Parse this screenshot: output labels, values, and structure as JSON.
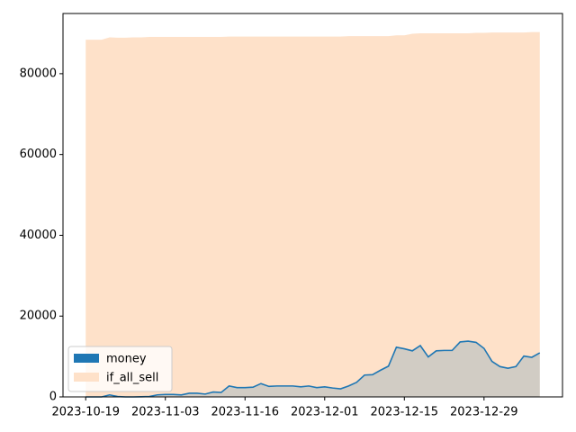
{
  "chart_data": {
    "type": "area",
    "categories": [
      "2023-10-19",
      null,
      null,
      null,
      null,
      null,
      null,
      null,
      null,
      null,
      "2023-11-03",
      null,
      null,
      null,
      null,
      null,
      null,
      null,
      null,
      null,
      "2023-11-16",
      null,
      null,
      null,
      null,
      null,
      null,
      null,
      null,
      null,
      "2023-12-01",
      null,
      null,
      null,
      null,
      null,
      null,
      null,
      null,
      null,
      "2023-12-15",
      null,
      null,
      null,
      null,
      null,
      null,
      null,
      null,
      null,
      "2023-12-29",
      null,
      null,
      null,
      null,
      null,
      null,
      null
    ],
    "series": [
      {
        "name": "if_all_sell",
        "color": "#fee1c9",
        "values": [
          88400,
          88400,
          88400,
          89000,
          88900,
          88900,
          89000,
          89000,
          89100,
          89100,
          89100,
          89100,
          89100,
          89100,
          89100,
          89100,
          89100,
          89100,
          89200,
          89200,
          89200,
          89200,
          89200,
          89200,
          89200,
          89200,
          89200,
          89200,
          89200,
          89200,
          89200,
          89200,
          89200,
          89300,
          89300,
          89300,
          89300,
          89300,
          89300,
          89500,
          89500,
          89900,
          90000,
          90000,
          90000,
          90000,
          90000,
          90000,
          90000,
          90100,
          90100,
          90200,
          90200,
          90200,
          90200,
          90200,
          90300,
          90300
        ]
      },
      {
        "name": "money",
        "color": "#1f77b4",
        "values": [
          0,
          0,
          0,
          500,
          100,
          0,
          0,
          50,
          100,
          500,
          600,
          600,
          500,
          900,
          900,
          700,
          1200,
          1100,
          2700,
          2300,
          2300,
          2400,
          3300,
          2600,
          2700,
          2700,
          2700,
          2500,
          2700,
          2300,
          2500,
          2200,
          2000,
          2700,
          3600,
          5400,
          5500,
          6600,
          7600,
          12300,
          11900,
          11400,
          12700,
          9900,
          11400,
          11500,
          11500,
          13600,
          13800,
          13500,
          12000,
          8800,
          7500,
          7100,
          7500,
          10100,
          9800,
          10900
        ]
      }
    ],
    "ylim": [
      0,
      94900
    ],
    "yticks": [
      0,
      20000,
      40000,
      60000,
      80000
    ],
    "legend": "lower left"
  }
}
